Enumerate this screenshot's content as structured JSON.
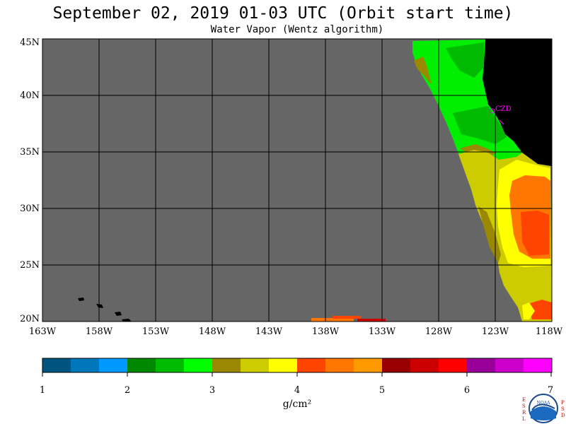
{
  "header": {
    "title": "September 02, 2019  01-03 UTC  (Orbit start time)",
    "subtitle": "Water Vapor (Wentz algorithm)"
  },
  "map": {
    "lat_labels": [
      "45N",
      "40N",
      "35N",
      "30N",
      "25N",
      "20N"
    ],
    "lon_labels": [
      "163W",
      "158W",
      "153W",
      "148W",
      "143W",
      "138W",
      "133W",
      "128W",
      "123W",
      "118W"
    ],
    "station_label": "CZD",
    "colors": {
      "ocean_nodata": "#666666",
      "land": "#000000",
      "station": "#ff00ff"
    }
  },
  "colorbar": {
    "tick_labels": [
      "1",
      "2",
      "3",
      "4",
      "5",
      "6",
      "7"
    ],
    "unit_label": "g/cm²",
    "colors": [
      "#005580",
      "#0077bb",
      "#0099ff",
      "#008800",
      "#00bb00",
      "#00ff00",
      "#998800",
      "#cccc00",
      "#ffff00",
      "#ff4400",
      "#ff7700",
      "#ff9900",
      "#990000",
      "#cc0000",
      "#ff0000",
      "#990099",
      "#cc00cc",
      "#ff00ff"
    ]
  },
  "logos": {
    "left_text": "ESRL",
    "right_text": "PSD",
    "center_text": "NOAA"
  }
}
